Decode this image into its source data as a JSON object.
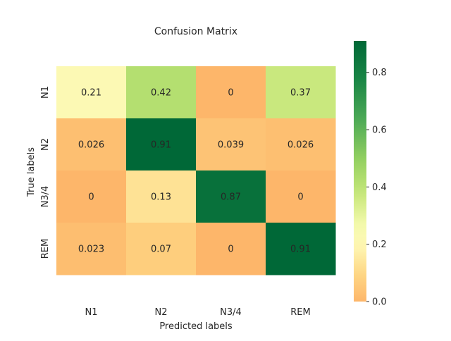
{
  "chart_data": {
    "type": "heatmap",
    "title": "Confusion Matrix",
    "xlabel": "Predicted labels",
    "ylabel": "True labels",
    "x_categories": [
      "N1",
      "N2",
      "N3/4",
      "REM"
    ],
    "y_categories": [
      "N1",
      "N2",
      "N3/4",
      "REM"
    ],
    "values": [
      [
        0.21,
        0.42,
        0,
        0.37
      ],
      [
        0.026,
        0.91,
        0.039,
        0.026
      ],
      [
        0,
        0.13,
        0.87,
        0
      ],
      [
        0.023,
        0.07,
        0,
        0.91
      ]
    ],
    "value_labels": [
      [
        "0.21",
        "0.42",
        "0",
        "0.37"
      ],
      [
        "0.026",
        "0.91",
        "0.039",
        "0.026"
      ],
      [
        "0",
        "0.13",
        "0.87",
        "0"
      ],
      [
        "0.023",
        "0.07",
        "0",
        "0.91"
      ]
    ],
    "colorbar": {
      "min": 0,
      "max": 0.91,
      "ticks": [
        0.0,
        0.2,
        0.4,
        0.6,
        0.8
      ],
      "tick_labels": [
        "0.0",
        "0.2",
        "0.4",
        "0.6",
        "0.8"
      ]
    },
    "colormap": "RdYlGn"
  }
}
